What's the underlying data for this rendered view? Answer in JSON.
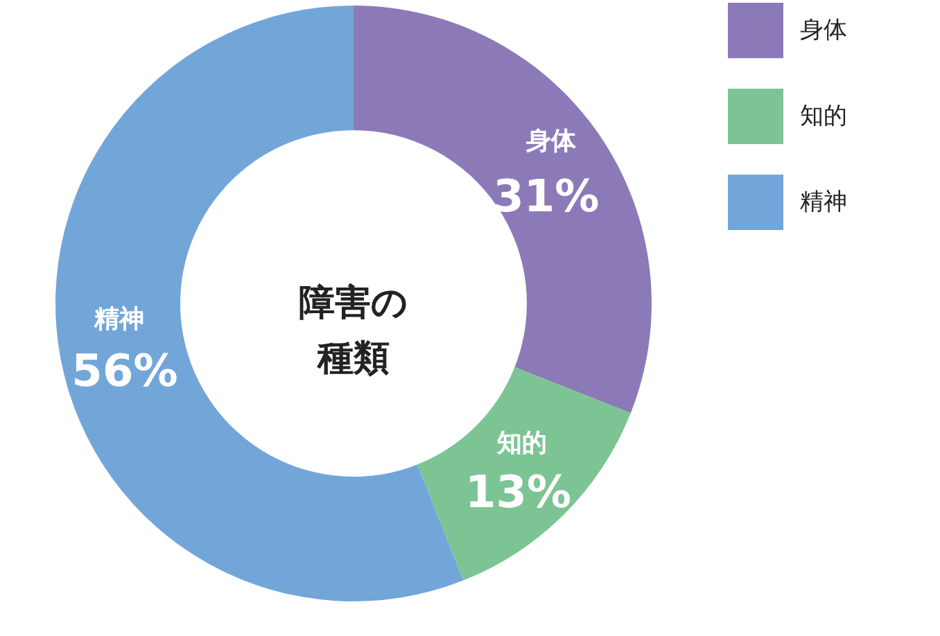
{
  "chart_data": {
    "type": "donut",
    "title": "障害の種類",
    "categories": [
      "身体",
      "知的",
      "精神"
    ],
    "values": [
      31,
      13,
      56
    ],
    "value_labels": [
      "31%",
      "13%",
      "56%"
    ],
    "colors": [
      "#8c7ab8",
      "#7dc495",
      "#72a6d9"
    ],
    "legend": "top right"
  }
}
